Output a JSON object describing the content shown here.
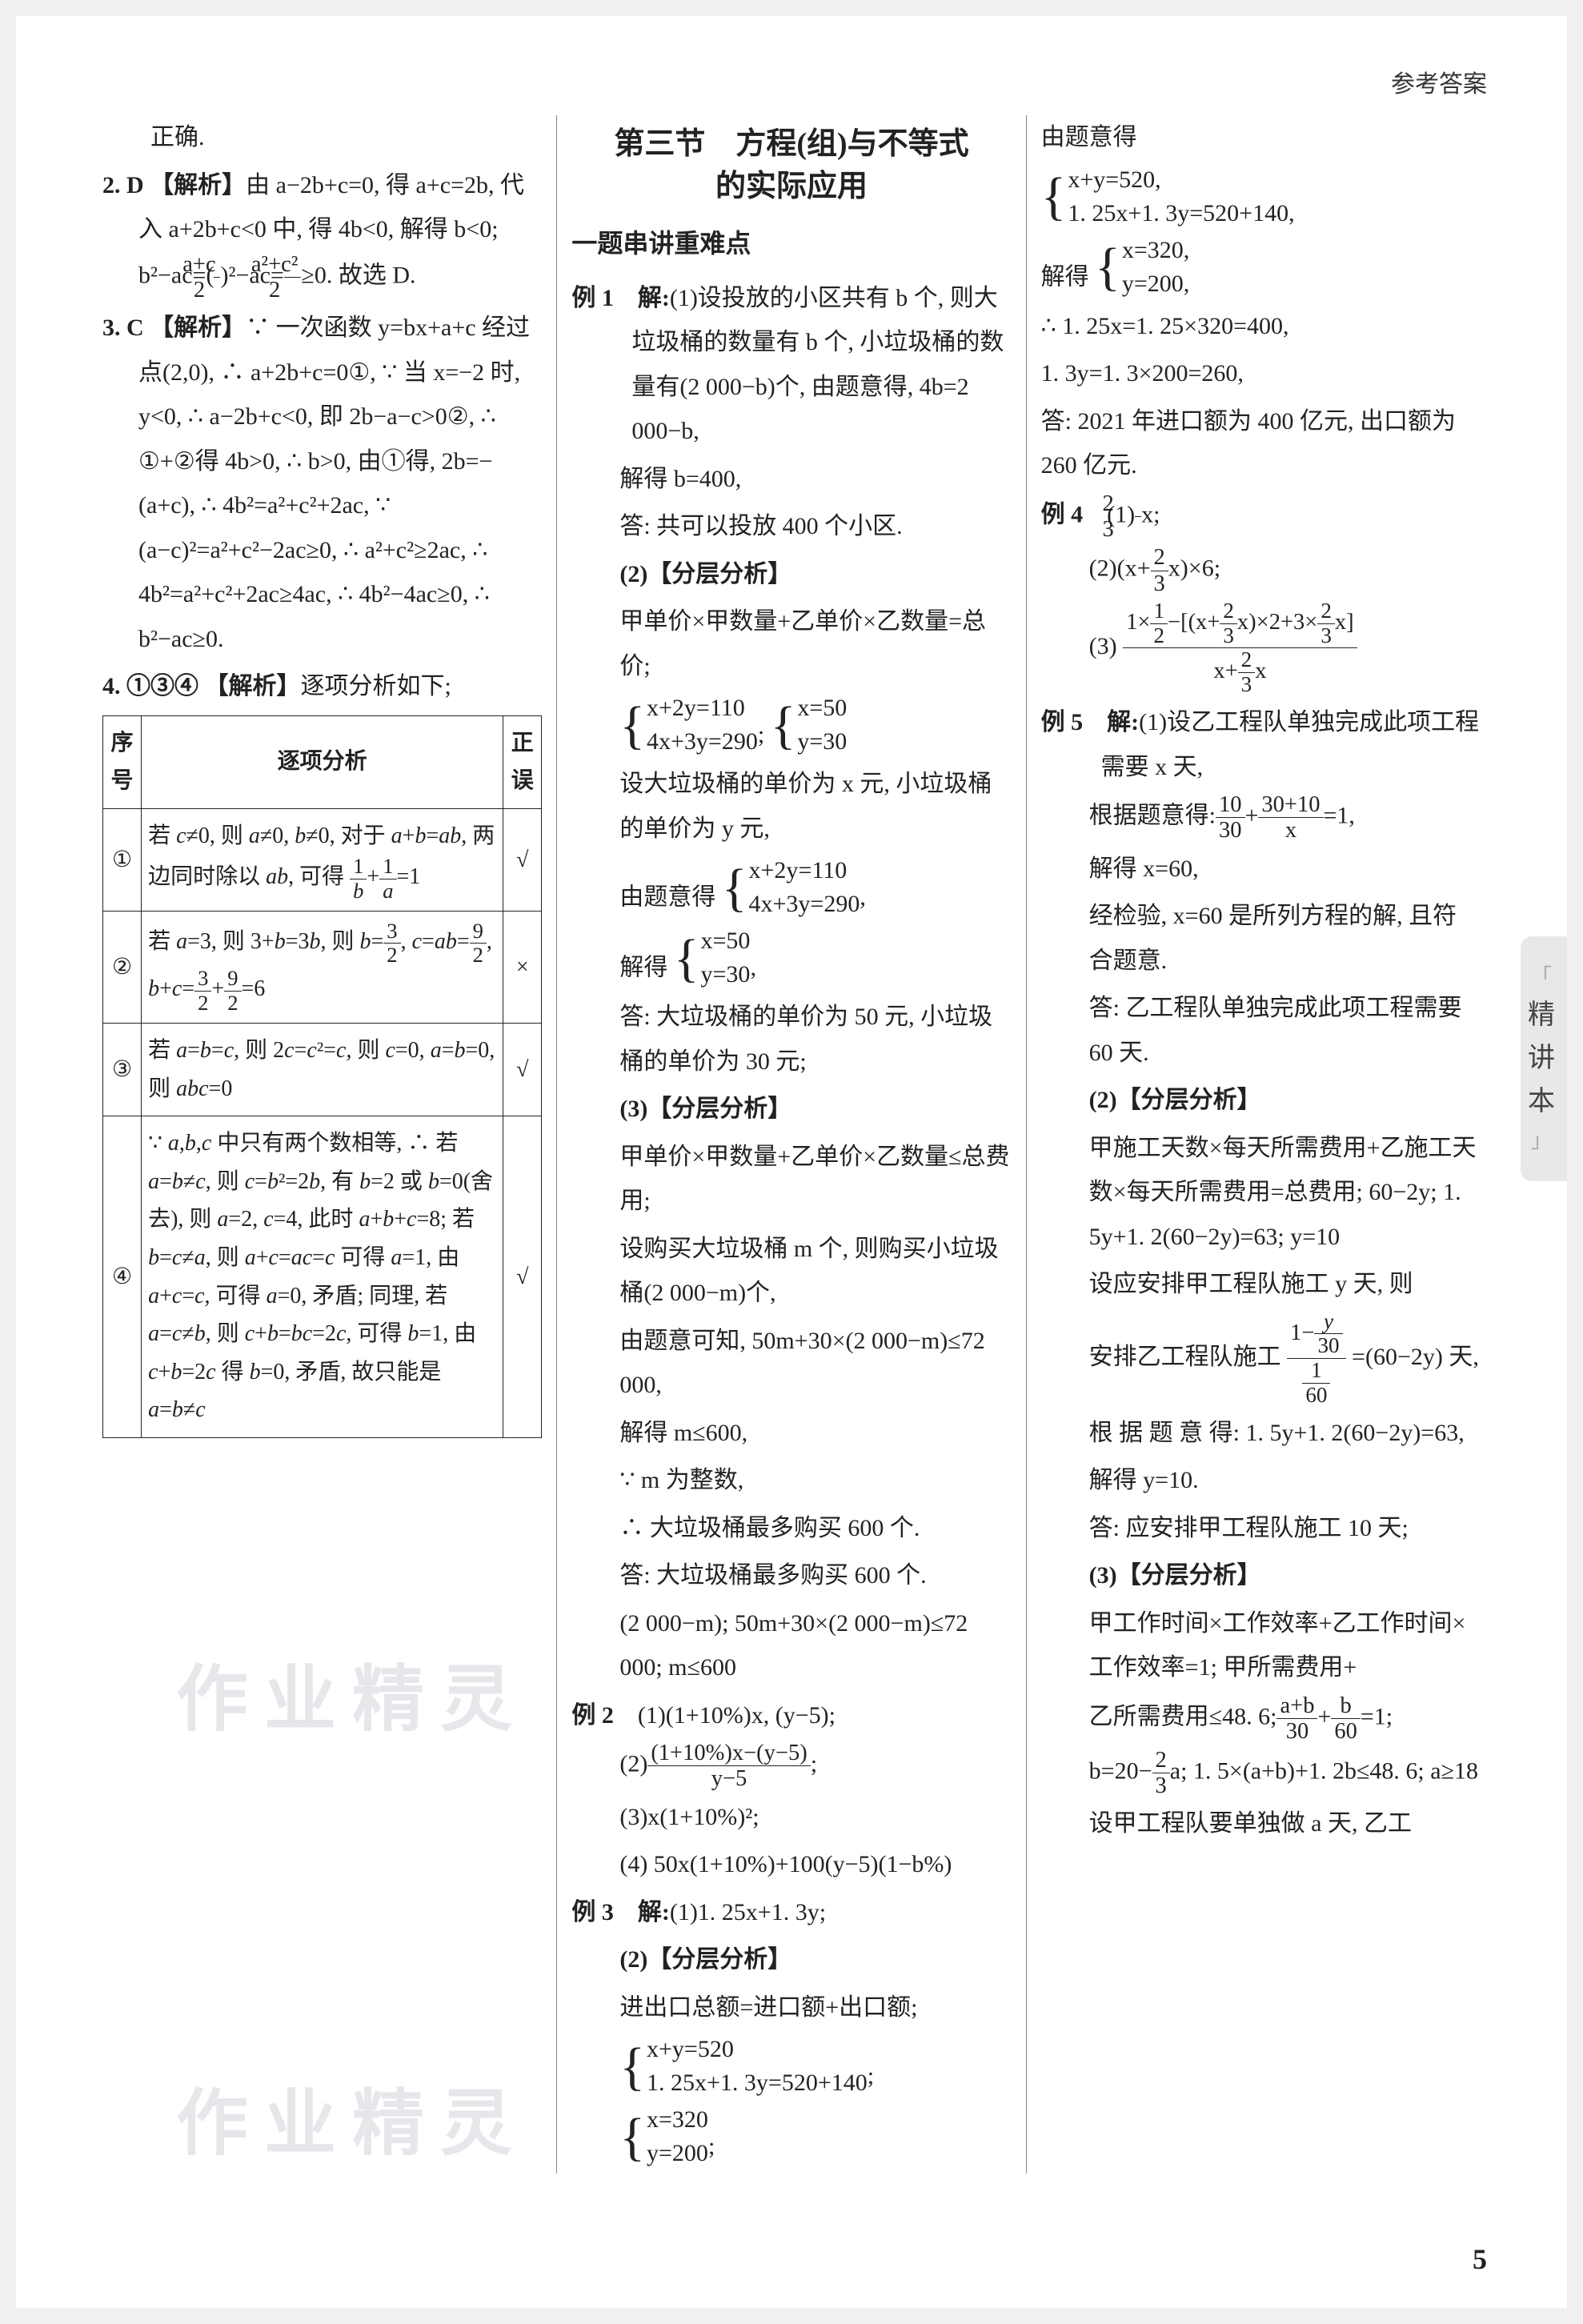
{
  "header": "参考答案",
  "pageNumber": "5",
  "sideTab": {
    "text": "精讲本",
    "bracketTop": "「",
    "bracketBot": "」"
  },
  "watermark": "作业精灵",
  "col1": {
    "line0": "正确.",
    "q2": {
      "head": "2.  D  【解析】",
      "body1": "由 a−2b+c=0, 得 a+c=2b, 代入 a+2b+c<0 中, 得 4b<0, 解得 b<0; b²−ac=(",
      "frac1": {
        "num": "a+c",
        "den": "2"
      },
      "body2": ")²−ac=",
      "frac2": {
        "num": "a²+c²",
        "den": "2"
      },
      "body3": "≥0. 故选 D."
    },
    "q3": {
      "head": "3.  C  【解析】",
      "body": "∵ 一次函数 y=bx+a+c 经过点(2,0), ∴ a+2b+c=0①, ∵ 当 x=−2 时, y<0, ∴ a−2b+c<0, 即 2b−a−c>0②, ∴ ①+②得 4b>0, ∴ b>0, 由①得, 2b=−(a+c), ∴ 4b²=a²+c²+2ac, ∵ (a−c)²=a²+c²−2ac≥0, ∴ a²+c²≥2ac, ∴ 4b²=a²+c²+2ac≥4ac, ∴ 4b²−4ac≥0, ∴ b²−ac≥0."
    },
    "q4": {
      "head": "4.  ①③④  【解析】",
      "body": "逐项分析如下;",
      "table": {
        "headers": [
          "序号",
          "逐项分析",
          "正误"
        ],
        "rows": [
          {
            "num": "①",
            "text": "若 c≠0, 则 a≠0, b≠0, 对于 a+b=ab, 两边同时除以 ab, 可得 1/b + 1/a = 1",
            "mark": "√"
          },
          {
            "num": "②",
            "text": "若 a=3, 则 3+b=3b, 则 b=3/2, c=ab=9/2, b+c=3/2+9/2=6",
            "mark": "×"
          },
          {
            "num": "③",
            "text": "若 a=b=c, 则 2c=c²=c, 则 c=0, a=b=0, 则 abc=0",
            "mark": "√"
          },
          {
            "num": "④",
            "text": "∵ a,b,c 中只有两个数相等, ∴ 若 a=b≠c, 则 c=b²=2b, 有 b=2 或 b=0(舍去), 则 a=2, c=4, 此时 a+b+c=8; 若 b=c≠a, 则 a+c=ac=c 可得 a=1, 由 a+c=c, 可得 a=0, 矛盾; 同理, 若 a=c≠b, 则 c+b=bc=2c, 可得 b=1, 由 c+b=2c 得 b=0, 矛盾, 故只能是 a=b≠c",
            "mark": "√"
          }
        ]
      }
    }
  },
  "col2": {
    "sectionTitle1": "第三节　方程(组)与不等式",
    "sectionTitle2": "的实际应用",
    "sub1": "一题串讲重难点",
    "ex1": {
      "label": "例 1　解:",
      "p1": "(1)设投放的小区共有 b 个, 则大垃圾桶的数量有 b 个, 小垃圾桶的数量有(2 000−b)个, 由题意得, 4b=2 000−b,",
      "p2": "解得 b=400,",
      "p3": "答: 共可以投放 400 个小区.",
      "p4": "(2)【分层分析】",
      "p5": "甲单价×甲数量+乙单价×乙数量=总价;",
      "eq1": {
        "l1": "x+2y=110",
        "l2": "4x+3y=290",
        "r1": "x=50",
        "r2": "y=30"
      },
      "p6": "设大垃圾桶的单价为 x 元, 小垃圾桶的单价为 y 元,",
      "p7": "由题意得",
      "eq2": {
        "l1": "x+2y=110",
        "l2": "4x+3y=290"
      },
      "p8": "解得",
      "eq3": {
        "l1": "x=50",
        "l2": "y=30"
      },
      "p9": "答: 大垃圾桶的单价为 50 元, 小垃圾桶的单价为 30 元;",
      "p10": "(3)【分层分析】",
      "p11": "甲单价×甲数量+乙单价×乙数量≤总费用;",
      "p12": "设购买大垃圾桶 m 个, 则购买小垃圾桶(2 000−m)个,",
      "p13": "由题意可知, 50m+30×(2 000−m)≤72 000,",
      "p14": "解得 m≤600,",
      "p15": "∵ m 为整数,",
      "p16": "∴ 大垃圾桶最多购买 600 个.",
      "p17": "答: 大垃圾桶最多购买 600 个.",
      "p18": "(2 000−m); 50m+30×(2 000−m)≤72 000; m≤600"
    },
    "ex2": {
      "label": "例 2",
      "p1": "(1)(1+10%)x, (y−5);",
      "p2a": "(2)",
      "frac": {
        "num": "(1+10%)x−(y−5)",
        "den": "y−5"
      },
      "p2b": ";",
      "p3": "(3)x(1+10%)²;",
      "p4": "(4) 50x(1+10%)+100(y−5)(1−b%)"
    },
    "ex3": {
      "label": "例 3　解:",
      "p1": "(1)1. 25x+1. 3y;",
      "p2": "(2)【分层分析】",
      "p3": "进出口总额=进口额+出口额;",
      "eq1": {
        "l1": "x+y=520",
        "l2": "1. 25x+1. 3y=520+140"
      },
      "eq2": {
        "l1": "x=320",
        "l2": "y=200"
      }
    }
  },
  "col3": {
    "p1": "由题意得",
    "eq1": {
      "l1": "x+y=520,",
      "l2": "1. 25x+1. 3y=520+140,"
    },
    "p2": "解得",
    "eq2": {
      "l1": "x=320,",
      "l2": "y=200,"
    },
    "p3": "∴ 1. 25x=1. 25×320=400,",
    "p4": "1. 3y=1. 3×200=260,",
    "p5": "答: 2021 年进口额为 400 亿元, 出口额为 260 亿元.",
    "ex4": {
      "label": "例 4",
      "p1a": "(1)",
      "frac1": {
        "num": "2",
        "den": "3"
      },
      "p1b": "x;",
      "p2a": "(2)(x+",
      "frac2": {
        "num": "2",
        "den": "3"
      },
      "p2b": "x)×6;",
      "p3a": "(3)",
      "frac3num": "1×½−[(x+⅔x)×2+3×⅔x]",
      "frac3den": "x+⅔x"
    },
    "ex5": {
      "label": "例 5　解:",
      "p1": "(1)设乙工程队单独完成此项工程需要 x 天,",
      "p2a": "根据题意得:",
      "frac1": {
        "num": "10",
        "den": "30"
      },
      "p2b": "+",
      "frac2": {
        "num": "30+10",
        "den": "x"
      },
      "p2c": "=1,",
      "p3": "解得 x=60,",
      "p4": "经检验, x=60 是所列方程的解, 且符合题意.",
      "p5": "答: 乙工程队单独完成此项工程需要 60 天.",
      "p6": "(2)【分层分析】",
      "p7": "甲施工天数×每天所需费用+乙施工天数×每天所需费用=总费用; 60−2y; 1. 5y+1. 2(60−2y)=63; y=10",
      "p8": "设应安排甲工程队施工 y 天, 则",
      "p9a": "安排乙工程队施工",
      "frac3": {
        "num": "1−y/30",
        "den": "1/60"
      },
      "p9b": "=(60−2y) 天,",
      "p10": "根 据 题 意 得: 1. 5y+1. 2(60−2y)=63,",
      "p11": "解得 y=10.",
      "p12": "答: 应安排甲工程队施工 10 天;",
      "p13": "(3)【分层分析】",
      "p14": "甲工作时间×工作效率+乙工作时间×工作效率=1; 甲所需费用+",
      "p15a": "乙所需费用≤48. 6;",
      "frac4": {
        "num": "a+b",
        "den": "30"
      },
      "p15b": "+",
      "frac5": {
        "num": "b",
        "den": "60"
      },
      "p15c": "=1;",
      "p16a": "b=20−",
      "frac6": {
        "num": "2",
        "den": "3"
      },
      "p16b": "a; 1. 5×(a+b)+1. 2b≤48. 6; a≥18",
      "p17": "设甲工程队要单独做 a 天, 乙工"
    }
  }
}
